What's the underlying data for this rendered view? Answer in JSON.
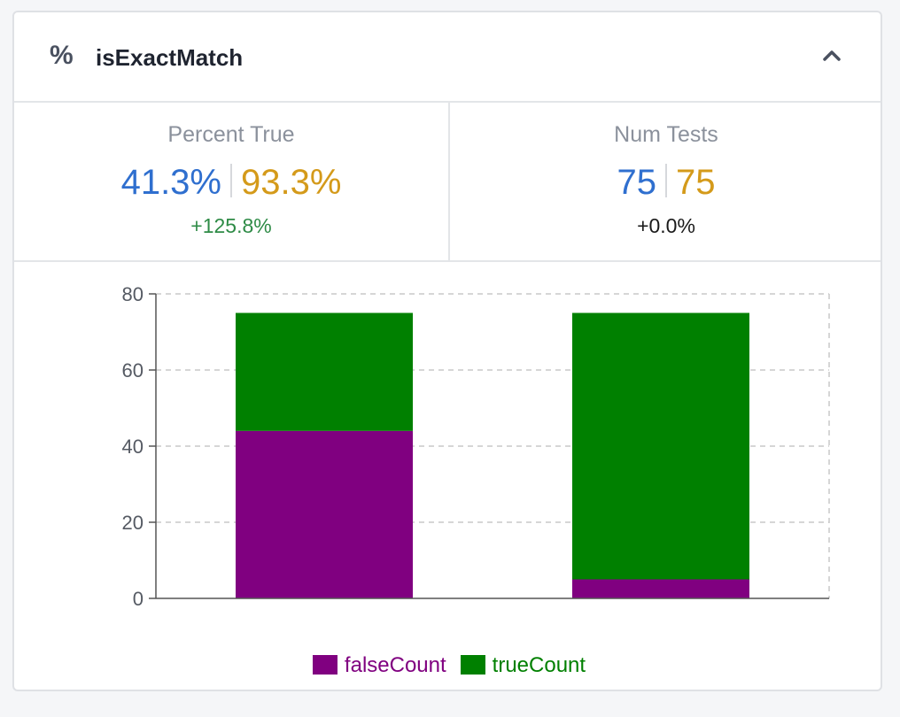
{
  "header": {
    "icon_glyph": "%",
    "title": "isExactMatch",
    "collapse_icon": "chevron-up-icon"
  },
  "stats": {
    "percent_true": {
      "label": "Percent True",
      "value_a": "41.3%",
      "value_b": "93.3%",
      "delta": "+125.8%"
    },
    "num_tests": {
      "label": "Num Tests",
      "value_a": "75",
      "value_b": "75",
      "delta": "+0.0%"
    }
  },
  "colors": {
    "value_a": "#2f6fcf",
    "value_b": "#d49a1a",
    "delta_positive": "#2e8b46",
    "falseCount": "#800080",
    "trueCount": "#008000"
  },
  "chart_data": {
    "type": "bar",
    "stacked": true,
    "categories": [
      "",
      ""
    ],
    "series": [
      {
        "name": "falseCount",
        "values": [
          44,
          5
        ],
        "color": "#800080"
      },
      {
        "name": "trueCount",
        "values": [
          31,
          70
        ],
        "color": "#008000"
      }
    ],
    "ylim": [
      0,
      80
    ],
    "yticks": [
      0,
      20,
      40,
      60,
      80
    ],
    "grid": true,
    "legend": "bottom-center",
    "title": "",
    "xlabel": "",
    "ylabel": ""
  }
}
